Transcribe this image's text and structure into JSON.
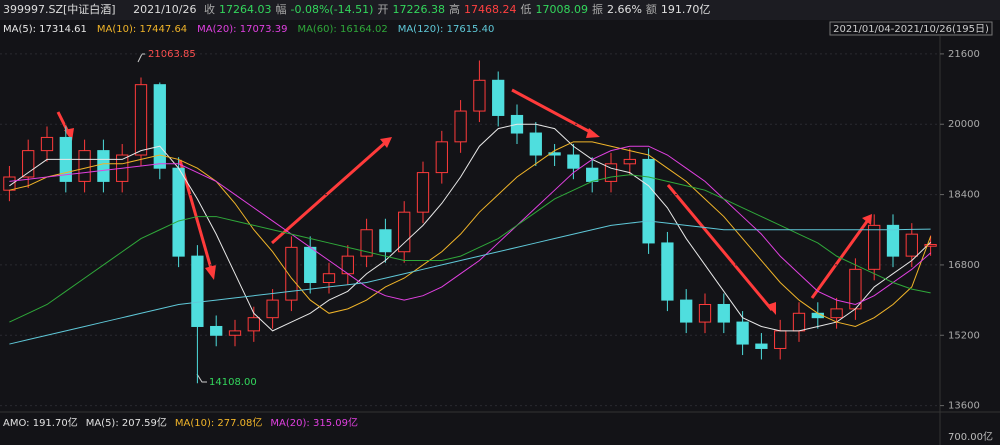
{
  "header": {
    "symbol": "399997.SZ[中证白酒]",
    "date": "2021/10/26",
    "fields": [
      {
        "label": "收",
        "value": "17264.03",
        "color": "#33d65c"
      },
      {
        "label": "幅",
        "value": "-0.08%(-14.51)",
        "color": "#33d65c"
      },
      {
        "label": "开",
        "value": "17226.38",
        "color": "#33d65c"
      },
      {
        "label": "高",
        "value": "17468.24",
        "color": "#ff4040"
      },
      {
        "label": "低",
        "value": "17008.09",
        "color": "#33d65c"
      },
      {
        "label": "振",
        "value": "2.66%",
        "color": "#e0e0e0"
      },
      {
        "label": "额",
        "value": "191.70亿",
        "color": "#e0e0e0"
      }
    ]
  },
  "range": "2021/01/04-2021/10/26(195日)",
  "amo_legend": [
    {
      "text": "AMO: 191.70亿",
      "color": "#e0e0e0"
    },
    {
      "text": "MA(5): 207.59亿",
      "color": "#e0e0e0"
    },
    {
      "text": "MA(10): 277.08亿",
      "color": "#f0b429"
    },
    {
      "text": "MA(20): 315.09亿",
      "color": "#e040e0"
    }
  ],
  "amo_axis": "700.00亿",
  "chart_data": {
    "type": "candlestick",
    "up_color": "#ff3b3b",
    "down_color": "#4fdede",
    "grid": true,
    "ylim": [
      13500,
      22030
    ],
    "yticks": [
      13600,
      15200,
      16800,
      18400,
      20000,
      21600
    ],
    "open": [
      18500,
      18800,
      19400,
      19700,
      18700,
      19400,
      18700,
      19300,
      20900,
      19000,
      17000,
      15400,
      15200,
      15300,
      15600,
      16000,
      17200,
      16400,
      16600,
      17000,
      17600,
      17100,
      18000,
      18900,
      19600,
      20300,
      21000,
      20200,
      19800,
      19350,
      19300,
      19000,
      18700,
      19100,
      19200,
      17300,
      16000,
      15500,
      15900,
      15500,
      15000,
      14900,
      15300,
      15700,
      15600,
      15800,
      16700,
      17700,
      17000,
      17226
    ],
    "high": [
      19050,
      19650,
      19950,
      19950,
      19650,
      19650,
      19550,
      21064,
      20950,
      19250,
      17250,
      15650,
      15550,
      15850,
      16250,
      17450,
      17450,
      16850,
      17250,
      17850,
      17850,
      18250,
      19150,
      19850,
      20550,
      21450,
      21200,
      20450,
      20050,
      19550,
      19550,
      19250,
      19350,
      19450,
      19450,
      17550,
      16250,
      16150,
      16150,
      15750,
      15250,
      15550,
      15950,
      15950,
      16050,
      16950,
      17950,
      17950,
      17750,
      17468
    ],
    "low": [
      18250,
      18550,
      19150,
      18450,
      18450,
      18450,
      18450,
      19050,
      18750,
      16750,
      14108,
      14950,
      14950,
      15050,
      15350,
      15750,
      16150,
      16150,
      16350,
      16750,
      16850,
      16850,
      17750,
      18650,
      19350,
      20050,
      19950,
      19550,
      19050,
      19050,
      18750,
      18450,
      18450,
      18850,
      17050,
      15750,
      15250,
      15250,
      15250,
      14750,
      14650,
      14650,
      15050,
      15350,
      15350,
      15550,
      16450,
      16750,
      16750,
      17008
    ],
    "close": [
      18800,
      19400,
      19700,
      18700,
      19400,
      18700,
      19300,
      20900,
      19000,
      17000,
      15400,
      15200,
      15300,
      15600,
      16000,
      17200,
      16400,
      16600,
      17000,
      17600,
      17100,
      18000,
      18900,
      19600,
      20300,
      21000,
      20200,
      19800,
      19300,
      19300,
      19000,
      18700,
      19100,
      19200,
      17300,
      16000,
      15500,
      15900,
      15500,
      15000,
      14900,
      15300,
      15700,
      15600,
      15800,
      16700,
      17700,
      17000,
      17500,
      17264
    ],
    "series": [
      {
        "name": "MA(5): 17314.61",
        "color": "#e8e8e8",
        "values": [
          18600,
          18900,
          19200,
          19200,
          19200,
          19200,
          19200,
          19400,
          19500,
          19000,
          18300,
          17500,
          16600,
          15700,
          15300,
          15500,
          15700,
          16000,
          16200,
          16600,
          16900,
          17300,
          17700,
          18200,
          18800,
          19500,
          19900,
          20000,
          20000,
          19900,
          19500,
          19200,
          19000,
          18900,
          18600,
          18100,
          17400,
          16800,
          16200,
          15600,
          15400,
          15300,
          15300,
          15400,
          15500,
          15800,
          16300,
          16600,
          16900,
          17315
        ]
      },
      {
        "name": "MA(10): 17447.64",
        "color": "#f0b429",
        "values": [
          18500,
          18600,
          18800,
          18900,
          19000,
          19100,
          19100,
          19200,
          19300,
          19200,
          19000,
          18700,
          18200,
          17600,
          17100,
          16500,
          16000,
          15700,
          15800,
          16000,
          16300,
          16500,
          16800,
          17100,
          17500,
          18000,
          18400,
          18800,
          19100,
          19400,
          19600,
          19600,
          19500,
          19400,
          19300,
          19000,
          18700,
          18300,
          17900,
          17400,
          16900,
          16400,
          16000,
          15700,
          15500,
          15400,
          15600,
          15900,
          16300,
          17448
        ]
      },
      {
        "name": "MA(20): 17073.39",
        "color": "#e040e0",
        "values": [
          18700,
          18750,
          18800,
          18850,
          18900,
          18950,
          19000,
          19050,
          19100,
          19100,
          18900,
          18700,
          18400,
          18100,
          17800,
          17500,
          17200,
          16900,
          16600,
          16300,
          16100,
          16000,
          16100,
          16300,
          16600,
          16900,
          17300,
          17700,
          18100,
          18500,
          18900,
          19200,
          19400,
          19500,
          19500,
          19300,
          19000,
          18700,
          18300,
          17900,
          17500,
          17000,
          16600,
          16200,
          16000,
          15900,
          16100,
          16400,
          16700,
          17073
        ]
      },
      {
        "name": "MA(60): 16164.02",
        "color": "#2fa83a",
        "values": [
          15500,
          15700,
          15900,
          16200,
          16500,
          16800,
          17100,
          17400,
          17600,
          17800,
          17900,
          17900,
          17800,
          17700,
          17600,
          17500,
          17400,
          17300,
          17200,
          17100,
          17000,
          16900,
          16900,
          16900,
          17000,
          17200,
          17400,
          17700,
          18000,
          18300,
          18500,
          18700,
          18800,
          18850,
          18800,
          18700,
          18600,
          18500,
          18300,
          18100,
          17900,
          17700,
          17500,
          17300,
          17000,
          16800,
          16600,
          16400,
          16250,
          16164
        ]
      },
      {
        "name": "MA(120): 17615.40",
        "color": "#5fc8d8",
        "values": [
          15000,
          15100,
          15200,
          15300,
          15400,
          15500,
          15600,
          15700,
          15800,
          15900,
          15950,
          16000,
          16050,
          16100,
          16150,
          16200,
          16250,
          16300,
          16350,
          16400,
          16500,
          16600,
          16700,
          16800,
          16900,
          17000,
          17100,
          17200,
          17300,
          17400,
          17500,
          17600,
          17700,
          17750,
          17800,
          17750,
          17700,
          17650,
          17600,
          17600,
          17600,
          17600,
          17600,
          17600,
          17600,
          17600,
          17600,
          17600,
          17610,
          17615
        ]
      }
    ],
    "annotations": [
      {
        "text": "21063.85"
      },
      {
        "text": "14108.00"
      }
    ]
  }
}
